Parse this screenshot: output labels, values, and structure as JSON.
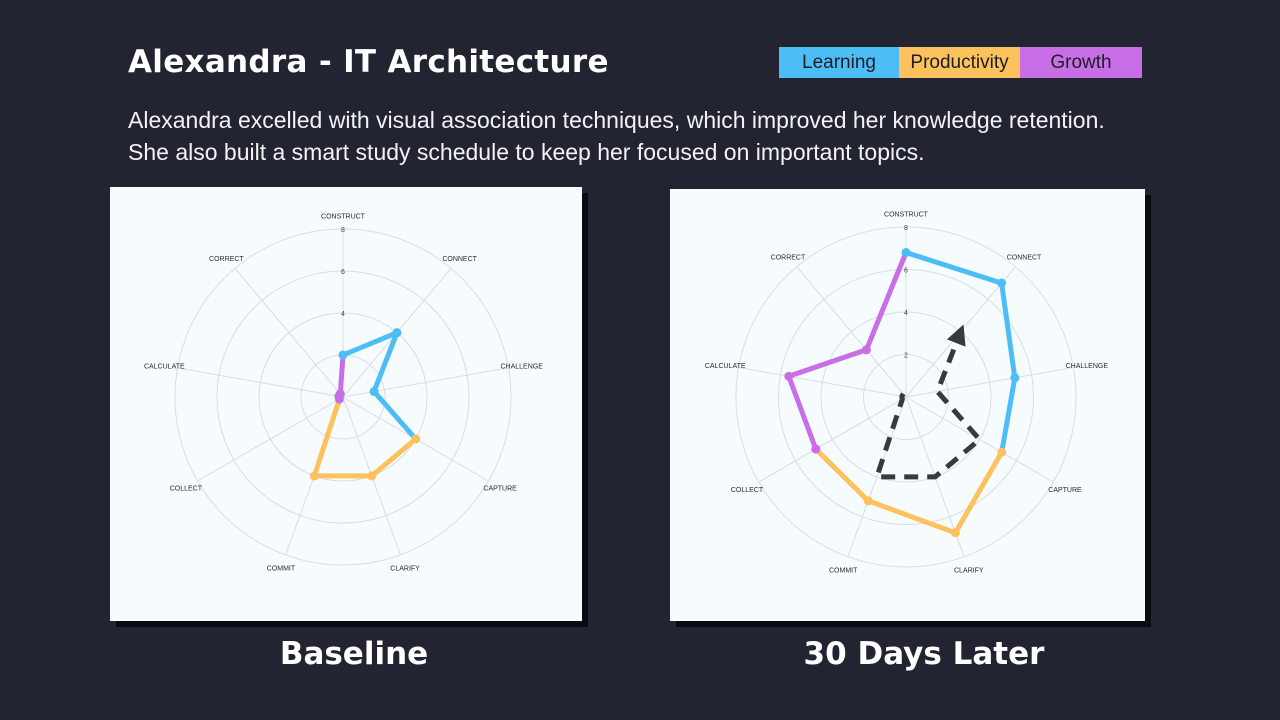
{
  "header": {
    "title": "Alexandra - IT Architecture",
    "description": "Alexandra excelled with visual association techniques, which improved her knowledge retention. She also built a smart study schedule to keep her focused on important topics."
  },
  "legend": [
    {
      "label": "Learning",
      "color": "#4dbef5"
    },
    {
      "label": "Productivity",
      "color": "#fdc15d"
    },
    {
      "label": "Growth",
      "color": "#c86ee6"
    }
  ],
  "chart_data": [
    {
      "type": "radar",
      "caption": "Baseline",
      "axes": [
        "CONSTRUCT",
        "CONNECT",
        "CHALLENGE",
        "CAPTURE",
        "CLARIFY",
        "COMMIT",
        "COLLECT",
        "CALCULATE",
        "CORRECT"
      ],
      "ticks": [
        2,
        4,
        6,
        8
      ],
      "range": [
        0,
        8
      ],
      "grid": true,
      "values": [
        2,
        4,
        1.5,
        4,
        4,
        4,
        0.2,
        0.2,
        0.2
      ],
      "segments": [
        {
          "group": "Learning",
          "color": "#4dbef5",
          "from": 0,
          "to": 3
        },
        {
          "group": "Productivity",
          "color": "#fdc15d",
          "from": 3,
          "to": 6
        },
        {
          "group": "Growth",
          "color": "#c86ee6",
          "from": 6,
          "to": 9
        }
      ],
      "baseline": null
    },
    {
      "type": "radar",
      "caption": "30 Days Later",
      "axes": [
        "CONSTRUCT",
        "CONNECT",
        "CHALLENGE",
        "CAPTURE",
        "CLARIFY",
        "COMMIT",
        "COLLECT",
        "CALCULATE",
        "CORRECT"
      ],
      "ticks": [
        2,
        4,
        6,
        8
      ],
      "range": [
        0,
        8
      ],
      "grid": true,
      "values": [
        6.8,
        7,
        5.2,
        5.2,
        6.8,
        5.2,
        4.9,
        5.6,
        2.9
      ],
      "segments": [
        {
          "group": "Learning",
          "color": "#4dbef5",
          "from": 0,
          "to": 3
        },
        {
          "group": "Productivity",
          "color": "#fdc15d",
          "from": 3,
          "to": 6
        },
        {
          "group": "Growth",
          "color": "#c86ee6",
          "from": 6,
          "to": 9
        }
      ],
      "baseline": [
        2,
        4,
        1.5,
        4,
        4,
        4,
        0.2,
        0.2,
        0.2
      ],
      "baseline_style": {
        "color": "#3a3a3e",
        "dashed": true,
        "arrow": true
      }
    }
  ]
}
